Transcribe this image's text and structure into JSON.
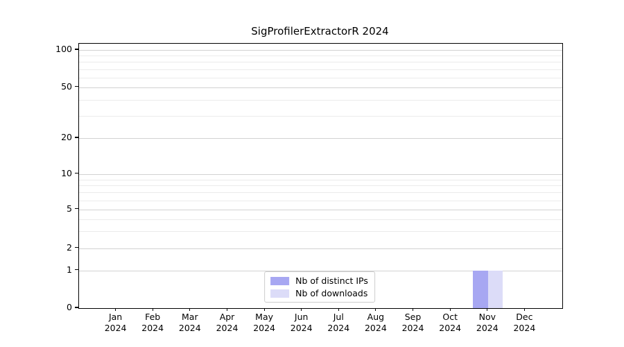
{
  "chart_data": {
    "type": "bar",
    "title": "SigProfilerExtractorR 2024",
    "categories": [
      "Jan",
      "Feb",
      "Mar",
      "Apr",
      "May",
      "Jun",
      "Jul",
      "Aug",
      "Sep",
      "Oct",
      "Nov",
      "Dec"
    ],
    "category_year_line": "2024",
    "series": [
      {
        "name": "Nb of distinct IPs",
        "color": "#a7a7f2",
        "values": [
          0,
          0,
          0,
          0,
          0,
          0,
          0,
          0,
          0,
          0,
          1,
          0
        ]
      },
      {
        "name": "Nb of downloads",
        "color": "#dcdcf8",
        "values": [
          0,
          0,
          0,
          0,
          0,
          0,
          0,
          0,
          0,
          0,
          1,
          0
        ]
      }
    ],
    "xlabel": "",
    "ylabel": "",
    "y_axis": {
      "scale": "symlog",
      "major_ticks": [
        0,
        1,
        2,
        5,
        10,
        20,
        50,
        100
      ],
      "minor_ticks": [
        3,
        4,
        6,
        7,
        8,
        9,
        30,
        40,
        60,
        70,
        80,
        90
      ],
      "range": [
        0,
        112
      ]
    },
    "grid": true,
    "legend_position": "lower center"
  },
  "colors": {
    "background": "#ffffff",
    "axis": "#000000",
    "major_grid": "#d2d2d2",
    "minor_grid": "#ebebeb",
    "legend_border": "#cccccc",
    "text": "#000000"
  }
}
